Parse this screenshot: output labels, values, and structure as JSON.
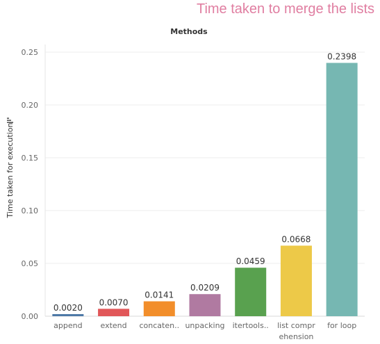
{
  "chart_data": {
    "type": "bar",
    "title": "Time taken to merge the lists",
    "xlabel": "Methods",
    "ylabel": "Time taken for execution",
    "ylim": [
      0,
      0.26
    ],
    "yticks": [
      "0.00",
      "0.05",
      "0.10",
      "0.15",
      "0.20",
      "0.25"
    ],
    "categories": [
      "append",
      "extend",
      "concaten..",
      "unpacking",
      "itertools..",
      "list comprehension",
      "for loop"
    ],
    "category_display": [
      [
        "append"
      ],
      [
        "extend"
      ],
      [
        "concaten.."
      ],
      [
        "unpacking"
      ],
      [
        "itertools.."
      ],
      [
        "list compr",
        "ehension"
      ],
      [
        "for loop"
      ]
    ],
    "values": [
      0.002,
      0.007,
      0.0141,
      0.0209,
      0.0459,
      0.0668,
      0.2398
    ],
    "value_labels": [
      "0.0020",
      "0.0070",
      "0.0141",
      "0.0209",
      "0.0459",
      "0.0668",
      "0.2398"
    ],
    "colors": [
      "#4e79a7",
      "#e15759",
      "#f28e2b",
      "#b07aa1",
      "#59a14f",
      "#edc948",
      "#76b7b2"
    ],
    "grid": true,
    "legend": "none"
  },
  "colors": {
    "title": "#e07ea1",
    "axis_text": "#666666",
    "header_text": "#333333",
    "gridline": "#eeeeee"
  },
  "icons": {
    "sort": "sort-icon"
  }
}
